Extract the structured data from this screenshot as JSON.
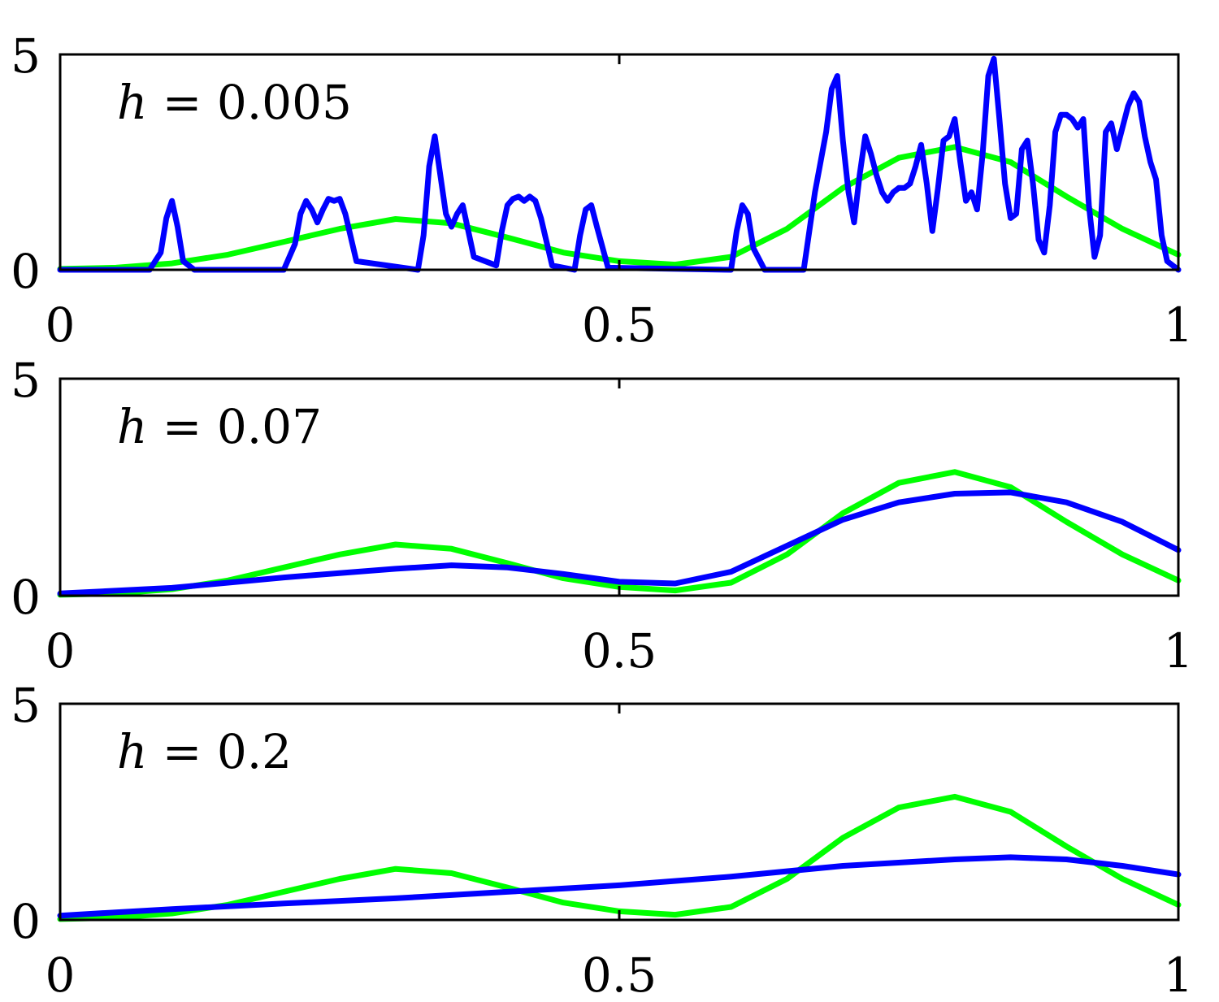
{
  "chart_data": [
    {
      "type": "line",
      "annotation": {
        "var": "h",
        "text": " = 0.005"
      },
      "xlim": [
        0,
        1
      ],
      "ylim": [
        0,
        5
      ],
      "xticks": [
        "0",
        "0.5",
        "1"
      ],
      "yticks": [
        "0",
        "5"
      ],
      "grid": false,
      "colors": {
        "true_density": "#00ff00",
        "estimate": "#0000ff"
      },
      "series": [
        {
          "key": "true_density",
          "x": [
            0,
            0.05,
            0.1,
            0.15,
            0.2,
            0.25,
            0.3,
            0.35,
            0.4,
            0.45,
            0.5,
            0.55,
            0.6,
            0.65,
            0.7,
            0.75,
            0.8,
            0.85,
            0.9,
            0.95,
            1.0
          ],
          "y": [
            0.02,
            0.05,
            0.15,
            0.35,
            0.65,
            0.95,
            1.18,
            1.08,
            0.75,
            0.4,
            0.2,
            0.12,
            0.3,
            0.95,
            1.9,
            2.6,
            2.85,
            2.5,
            1.7,
            0.95,
            0.35
          ]
        },
        {
          "key": "estimate",
          "x": [
            0,
            0.08,
            0.09,
            0.095,
            0.1,
            0.105,
            0.11,
            0.12,
            0.2,
            0.21,
            0.215,
            0.22,
            0.225,
            0.23,
            0.235,
            0.24,
            0.245,
            0.25,
            0.255,
            0.265,
            0.32,
            0.325,
            0.33,
            0.335,
            0.34,
            0.345,
            0.35,
            0.355,
            0.36,
            0.37,
            0.39,
            0.395,
            0.4,
            0.405,
            0.41,
            0.415,
            0.42,
            0.425,
            0.43,
            0.44,
            0.46,
            0.465,
            0.47,
            0.475,
            0.48,
            0.49,
            0.6,
            0.605,
            0.61,
            0.615,
            0.62,
            0.63,
            0.665,
            0.675,
            0.68,
            0.685,
            0.69,
            0.695,
            0.7,
            0.705,
            0.71,
            0.715,
            0.72,
            0.725,
            0.73,
            0.735,
            0.74,
            0.745,
            0.75,
            0.755,
            0.76,
            0.765,
            0.77,
            0.775,
            0.78,
            0.785,
            0.79,
            0.795,
            0.8,
            0.805,
            0.81,
            0.815,
            0.82,
            0.825,
            0.83,
            0.835,
            0.84,
            0.845,
            0.85,
            0.855,
            0.86,
            0.865,
            0.87,
            0.875,
            0.88,
            0.885,
            0.89,
            0.895,
            0.9,
            0.905,
            0.91,
            0.915,
            0.92,
            0.925,
            0.93,
            0.935,
            0.94,
            0.945,
            0.95,
            0.955,
            0.96,
            0.965,
            0.97,
            0.975,
            0.98,
            0.985,
            0.99,
            1.0
          ],
          "y": [
            0,
            0,
            0.4,
            1.2,
            1.6,
            1.0,
            0.2,
            0,
            0,
            0.6,
            1.3,
            1.6,
            1.4,
            1.1,
            1.4,
            1.65,
            1.6,
            1.65,
            1.3,
            0.2,
            0,
            0.8,
            2.4,
            3.1,
            2.2,
            1.3,
            1.0,
            1.3,
            1.5,
            0.3,
            0.1,
            0.9,
            1.5,
            1.65,
            1.7,
            1.6,
            1.7,
            1.6,
            1.2,
            0.1,
            0,
            0.8,
            1.4,
            1.5,
            1.0,
            0.05,
            0,
            0.9,
            1.5,
            1.3,
            0.5,
            0,
            0,
            1.8,
            2.5,
            3.2,
            4.2,
            4.5,
            3.0,
            1.8,
            1.1,
            2.2,
            3.1,
            2.7,
            2.2,
            1.8,
            1.6,
            1.8,
            1.9,
            1.9,
            2.0,
            2.4,
            2.9,
            2.0,
            0.9,
            1.9,
            3.0,
            3.1,
            3.5,
            2.5,
            1.6,
            1.8,
            1.4,
            2.7,
            4.5,
            4.9,
            3.5,
            2.0,
            1.2,
            1.3,
            2.8,
            3.0,
            2.0,
            0.7,
            0.4,
            1.5,
            3.2,
            3.6,
            3.6,
            3.5,
            3.3,
            3.5,
            1.5,
            0.3,
            0.8,
            3.2,
            3.4,
            2.8,
            3.3,
            3.8,
            4.1,
            3.9,
            3.1,
            2.5,
            2.1,
            0.8,
            0.2,
            0
          ]
        }
      ]
    },
    {
      "type": "line",
      "annotation": {
        "var": "h",
        "text": " = 0.07"
      },
      "xlim": [
        0,
        1
      ],
      "ylim": [
        0,
        5
      ],
      "xticks": [
        "0",
        "0.5",
        "1"
      ],
      "yticks": [
        "0",
        "5"
      ],
      "grid": false,
      "colors": {
        "true_density": "#00ff00",
        "estimate": "#0000ff"
      },
      "series": [
        {
          "key": "true_density",
          "x": [
            0,
            0.05,
            0.1,
            0.15,
            0.2,
            0.25,
            0.3,
            0.35,
            0.4,
            0.45,
            0.5,
            0.55,
            0.6,
            0.65,
            0.7,
            0.75,
            0.8,
            0.85,
            0.9,
            0.95,
            1.0
          ],
          "y": [
            0.02,
            0.05,
            0.15,
            0.35,
            0.65,
            0.95,
            1.18,
            1.08,
            0.75,
            0.4,
            0.2,
            0.12,
            0.3,
            0.95,
            1.9,
            2.6,
            2.85,
            2.5,
            1.7,
            0.95,
            0.35
          ]
        },
        {
          "key": "estimate",
          "x": [
            0,
            0.1,
            0.2,
            0.3,
            0.35,
            0.4,
            0.45,
            0.5,
            0.55,
            0.6,
            0.65,
            0.7,
            0.75,
            0.8,
            0.85,
            0.9,
            0.95,
            1.0
          ],
          "y": [
            0.05,
            0.18,
            0.42,
            0.62,
            0.7,
            0.65,
            0.5,
            0.32,
            0.28,
            0.55,
            1.15,
            1.75,
            2.15,
            2.35,
            2.38,
            2.15,
            1.7,
            1.05
          ]
        }
      ]
    },
    {
      "type": "line",
      "annotation": {
        "var": "h",
        "text": " = 0.2"
      },
      "xlim": [
        0,
        1
      ],
      "ylim": [
        0,
        5
      ],
      "xticks": [
        "0",
        "0.5",
        "1"
      ],
      "yticks": [
        "0",
        "5"
      ],
      "grid": false,
      "colors": {
        "true_density": "#00ff00",
        "estimate": "#0000ff"
      },
      "series": [
        {
          "key": "true_density",
          "x": [
            0,
            0.05,
            0.1,
            0.15,
            0.2,
            0.25,
            0.3,
            0.35,
            0.4,
            0.45,
            0.5,
            0.55,
            0.6,
            0.65,
            0.7,
            0.75,
            0.8,
            0.85,
            0.9,
            0.95,
            1.0
          ],
          "y": [
            0.02,
            0.05,
            0.15,
            0.35,
            0.65,
            0.95,
            1.18,
            1.08,
            0.75,
            0.4,
            0.2,
            0.12,
            0.3,
            0.95,
            1.9,
            2.6,
            2.85,
            2.5,
            1.7,
            0.95,
            0.35
          ]
        },
        {
          "key": "estimate",
          "x": [
            0,
            0.1,
            0.2,
            0.3,
            0.4,
            0.5,
            0.6,
            0.7,
            0.8,
            0.85,
            0.9,
            0.95,
            1.0
          ],
          "y": [
            0.1,
            0.25,
            0.38,
            0.5,
            0.65,
            0.8,
            1.0,
            1.25,
            1.4,
            1.45,
            1.4,
            1.25,
            1.05
          ]
        }
      ]
    }
  ]
}
